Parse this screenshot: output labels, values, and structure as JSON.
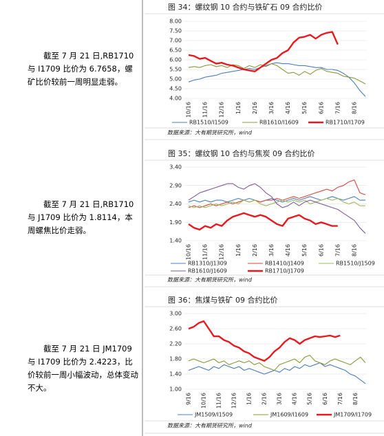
{
  "notes": [
    "截至 7 月 21 日,RB1710 与 I1709 比价为 6.7658，螺矿比价较前一周明显走弱。",
    "截至 7 月 21 日,RB1710 与 J1709 比价为 1.8114，本周螺焦比价走弱。",
    "截至 7 月 21 日 JM1709 与 I1709 比价为 2.4223，比价较前一周小幅波动，总体变动不大。"
  ],
  "chart_data": [
    {
      "type": "line",
      "title": "图 34：螺纹钢 10 合约与铁矿石 09 合约比价",
      "source": "数据来源：大有期货研究所，wind",
      "grid": true,
      "categories": [
        "10/16",
        null,
        null,
        "11/16",
        null,
        null,
        "12/16",
        null,
        null,
        "1/16",
        null,
        null,
        "2/16",
        null,
        null,
        "3/16",
        null,
        null,
        "4/16",
        null,
        null,
        "5/16",
        null,
        null,
        "6/16",
        null,
        null,
        "7/16",
        null,
        null,
        "8/16",
        null,
        null
      ],
      "ylim": [
        4.0,
        8.0
      ],
      "yticks": [
        {
          "value": 4.0,
          "label": "4.00"
        },
        {
          "value": 4.5,
          "label": "4.50"
        },
        {
          "value": 5.0,
          "label": "5.00"
        },
        {
          "value": 5.5,
          "label": "5.50"
        },
        {
          "value": 6.0,
          "label": "6.00"
        },
        {
          "value": 6.5,
          "label": "6.50"
        },
        {
          "value": 7.0,
          "label": "7.00"
        },
        {
          "value": 7.5,
          "label": "7.50"
        },
        {
          "value": 8.0,
          "label": "8.00"
        }
      ],
      "series": [
        {
          "name": "RB1510/I1509",
          "color": "#4a7ebb",
          "values": [
            4.85,
            4.95,
            5.0,
            5.1,
            5.15,
            5.2,
            5.3,
            5.35,
            5.4,
            5.45,
            5.5,
            5.55,
            5.5,
            5.6,
            5.7,
            5.8,
            5.85,
            5.8,
            5.8,
            5.75,
            5.7,
            5.7,
            5.65,
            5.6,
            5.6,
            5.5,
            5.5,
            5.45,
            5.3,
            5.1,
            4.8,
            4.4,
            4.1
          ]
        },
        {
          "name": "RB1610/I1609",
          "color": "#8a9a3a",
          "values": [
            5.6,
            5.65,
            5.6,
            5.7,
            5.75,
            5.65,
            5.7,
            5.6,
            5.75,
            5.7,
            5.55,
            5.7,
            5.6,
            5.75,
            5.65,
            5.8,
            5.7,
            5.5,
            5.3,
            5.35,
            5.2,
            5.4,
            5.25,
            5.45,
            5.55,
            5.4,
            5.35,
            5.3,
            5.15,
            5.1,
            5.05,
            4.9,
            4.75
          ]
        },
        {
          "name": "RB1710/I1709",
          "color": "#e8191e",
          "values": [
            6.25,
            6.2,
            6.05,
            6.1,
            5.95,
            5.8,
            5.85,
            5.75,
            5.7,
            5.6,
            5.5,
            5.45,
            5.4,
            5.6,
            5.8,
            6.0,
            6.1,
            6.35,
            6.5,
            6.9,
            7.15,
            7.2,
            7.3,
            7.1,
            7.3,
            7.4,
            7.45,
            6.8,
            null,
            null,
            null,
            null,
            null
          ]
        }
      ]
    },
    {
      "type": "line",
      "title": "图 35：螺纹钢 10 合约与焦炭 09 合约比价",
      "source": "数据来源：大有期货研究所，wind",
      "grid": true,
      "categories": [
        "10/16",
        null,
        null,
        "11/16",
        null,
        null,
        "12/16",
        null,
        null,
        "1/16",
        null,
        null,
        "2/16",
        null,
        null,
        "3/16",
        null,
        null,
        "4/16",
        null,
        null,
        "5/16",
        null,
        null,
        "6/16",
        null,
        null,
        "7/16",
        null,
        null,
        "8/16",
        null,
        null
      ],
      "ylim": [
        1.4,
        3.4
      ],
      "yticks": [
        {
          "value": 1.4,
          "label": "1.40"
        },
        {
          "value": 1.9,
          "label": "1.90"
        },
        {
          "value": 2.4,
          "label": "2.40"
        },
        {
          "value": 2.9,
          "label": "2.90"
        },
        {
          "value": 3.4,
          "label": "3.40"
        }
      ],
      "series": [
        {
          "name": "RB1310/J1309",
          "color": "#4a7ebb",
          "values": [
            2.45,
            2.5,
            2.45,
            2.5,
            2.45,
            2.5,
            2.5,
            2.45,
            2.5,
            2.55,
            2.5,
            2.55,
            2.5,
            2.45,
            2.5,
            2.55,
            2.5,
            2.45,
            2.5,
            2.55,
            2.5,
            2.55,
            2.6,
            2.55,
            2.5,
            2.55,
            2.6,
            2.55,
            2.5,
            2.55,
            2.6,
            2.5,
            2.5
          ]
        },
        {
          "name": "RB1410/J1409",
          "color": "#d9463a",
          "values": [
            2.3,
            2.35,
            2.3,
            2.35,
            2.4,
            2.35,
            2.4,
            2.45,
            2.4,
            2.45,
            2.5,
            2.45,
            2.5,
            2.45,
            2.5,
            2.5,
            2.55,
            2.5,
            2.55,
            2.6,
            2.55,
            2.6,
            2.65,
            2.7,
            2.75,
            2.8,
            2.75,
            2.85,
            2.9,
            3.0,
            3.05,
            2.7,
            2.65
          ]
        },
        {
          "name": "RB1510/J1509",
          "color": "#9bbb59",
          "values": [
            2.35,
            2.3,
            2.35,
            2.3,
            2.35,
            2.4,
            2.35,
            2.4,
            2.45,
            2.4,
            2.5,
            2.45,
            2.5,
            2.4,
            2.35,
            2.4,
            2.45,
            2.5,
            2.45,
            2.5,
            2.45,
            2.5,
            2.4,
            2.45,
            2.5,
            2.55,
            2.5,
            2.55,
            2.45,
            2.4,
            2.45,
            2.35,
            2.35
          ]
        },
        {
          "name": "RB1610/J1609",
          "color": "#7e5a9b",
          "values": [
            2.5,
            2.6,
            2.7,
            2.75,
            2.8,
            2.85,
            2.9,
            2.95,
            2.95,
            2.85,
            2.8,
            2.9,
            2.95,
            2.85,
            2.7,
            2.6,
            2.4,
            2.3,
            2.35,
            2.45,
            2.35,
            2.45,
            2.5,
            2.45,
            2.4,
            2.35,
            2.3,
            2.25,
            2.15,
            2.05,
            1.95,
            1.75,
            1.6
          ]
        },
        {
          "name": "RB1710/J1709",
          "color": "#e8191e",
          "values": [
            1.85,
            1.75,
            1.7,
            1.8,
            1.75,
            1.85,
            1.8,
            1.95,
            2.05,
            2.1,
            2.15,
            2.1,
            2.05,
            2.1,
            2.05,
            1.95,
            1.85,
            1.8,
            2.0,
            2.05,
            2.1,
            2.0,
            1.95,
            1.85,
            1.9,
            1.85,
            1.8,
            1.8,
            null,
            null,
            null,
            null,
            null
          ]
        }
      ]
    },
    {
      "type": "line",
      "title": "图 36：焦煤与铁矿 09 合约比价",
      "source": "数据来源：大有期货研究所，wind",
      "grid": true,
      "categories": [
        "9/16",
        null,
        null,
        "10/16",
        null,
        null,
        "11/16",
        null,
        null,
        "12/16",
        null,
        null,
        "1/16",
        null,
        null,
        "2/16",
        null,
        null,
        "3/16",
        null,
        null,
        "4/16",
        null,
        null,
        "5/16",
        null,
        null,
        "6/16",
        null,
        null,
        "7/16",
        null,
        null,
        "8/16",
        null,
        null
      ],
      "ylim": [
        1.0,
        3.0
      ],
      "yticks": [
        {
          "value": 1.0,
          "label": "1.00"
        },
        {
          "value": 1.4,
          "label": "1.40"
        },
        {
          "value": 1.8,
          "label": "1.80"
        },
        {
          "value": 2.2,
          "label": "2.20"
        },
        {
          "value": 2.6,
          "label": "2.60"
        },
        {
          "value": 3.0,
          "label": "3.00"
        }
      ],
      "series": [
        {
          "name": "JM1509/I1509",
          "color": "#4a7ebb",
          "values": [
            1.5,
            1.55,
            1.6,
            1.55,
            1.5,
            1.6,
            1.55,
            1.65,
            1.6,
            1.55,
            1.6,
            1.5,
            1.55,
            1.5,
            1.45,
            1.4,
            1.45,
            1.5,
            1.45,
            1.55,
            1.5,
            1.6,
            1.55,
            1.65,
            1.6,
            1.65,
            1.7,
            1.6,
            1.65,
            1.6,
            1.55,
            1.5,
            1.4,
            1.35,
            1.25,
            1.15
          ]
        },
        {
          "name": "JM1609/I1609",
          "color": "#8a9a3a",
          "values": [
            1.75,
            1.8,
            1.75,
            1.7,
            1.75,
            1.8,
            1.7,
            1.75,
            1.65,
            1.7,
            1.75,
            1.7,
            1.75,
            1.65,
            1.7,
            1.6,
            1.55,
            1.5,
            1.65,
            1.7,
            1.75,
            1.8,
            1.7,
            1.85,
            1.9,
            1.75,
            1.7,
            1.65,
            1.75,
            1.8,
            1.75,
            1.7,
            1.65,
            1.75,
            1.85,
            1.7
          ]
        },
        {
          "name": "JM1709/I1709",
          "color": "#e8191e",
          "values": [
            2.6,
            2.65,
            2.75,
            2.8,
            2.6,
            2.4,
            2.4,
            2.3,
            2.25,
            2.15,
            2.1,
            2.0,
            1.95,
            1.85,
            1.8,
            1.75,
            1.85,
            2.0,
            2.1,
            2.25,
            2.35,
            2.3,
            2.2,
            2.3,
            2.35,
            2.4,
            2.38,
            2.4,
            2.42,
            2.38,
            2.42,
            null,
            null,
            null,
            null,
            null
          ]
        }
      ]
    }
  ]
}
